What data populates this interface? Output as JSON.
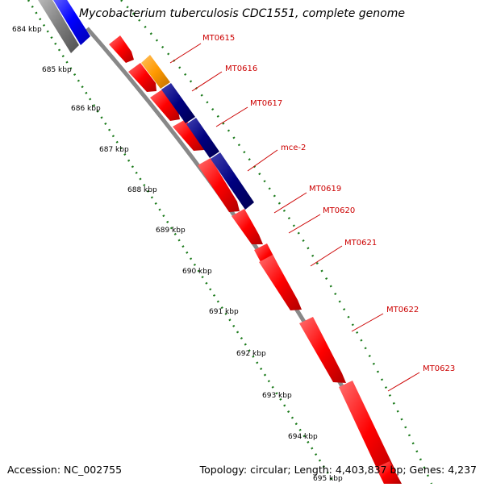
{
  "title": "Mycobacterium tuberculosis CDC1551, complete genome",
  "footer": {
    "accession": "Accession: NC_002755",
    "summary": "Topology: circular; Length: 4,403,837 bp; Genes: 4,237"
  },
  "colors": {
    "background": "#ffffff",
    "feature_red": "#ff0000",
    "feature_blue": "#0000ff",
    "feature_navy": "#000080",
    "feature_orange": "#ff9900",
    "backbone_gray": "#888888",
    "tick_green": "#1a7a1a",
    "label_red": "#cc0000"
  },
  "kbp_ticks": [
    "684 kbp",
    "685 kbp",
    "686 kbp",
    "687 kbp",
    "688 kbp",
    "689 kbp",
    "690 kbp",
    "691 kbp",
    "692 kbp",
    "693 kbp",
    "694 kbp",
    "695 kbp"
  ],
  "gene_labels": [
    "MT0615",
    "MT0616",
    "MT0617",
    "mce-2",
    "MT0619",
    "MT0620",
    "MT0621",
    "MT0622",
    "MT0623"
  ]
}
